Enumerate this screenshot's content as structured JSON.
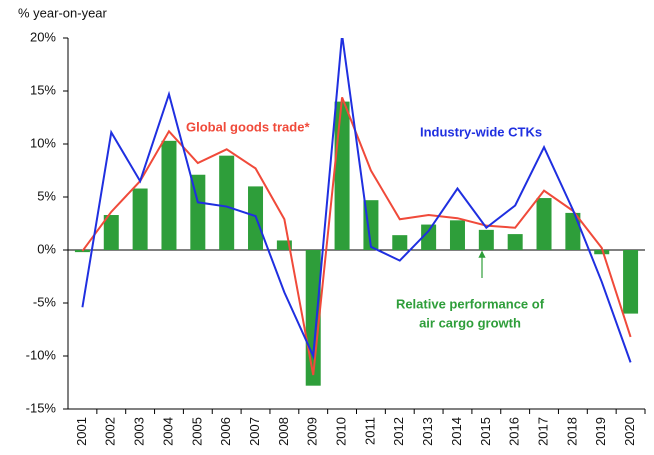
{
  "chart_data": {
    "type": "bar",
    "y_axis_label": "% year-on-year",
    "categories": [
      "2001",
      "2002",
      "2003",
      "2004",
      "2005",
      "2006",
      "2007",
      "2008",
      "2009",
      "2010",
      "2011",
      "2012",
      "2013",
      "2014",
      "2015",
      "2016",
      "2017",
      "2018",
      "2019",
      "2020"
    ],
    "series": [
      {
        "type": "bar",
        "color": "#2e9e3a",
        "values": [
          -0.2,
          3.3,
          5.8,
          10.3,
          7.1,
          8.9,
          6.0,
          0.9,
          -12.8,
          14.0,
          4.7,
          1.4,
          2.4,
          2.8,
          1.9,
          1.5,
          4.9,
          3.5,
          -0.4,
          -6.0
        ]
      },
      {
        "type": "line",
        "color": "#f04a3a",
        "values": [
          -0.1,
          3.6,
          6.5,
          11.2,
          8.2,
          9.5,
          7.7,
          2.9,
          -11.8,
          14.4,
          7.5,
          2.9,
          3.3,
          3.0,
          2.3,
          2.1,
          5.6,
          3.7,
          0.2,
          -8.2
        ]
      },
      {
        "type": "line",
        "color": "#1f2fe0",
        "values": [
          -5.4,
          11.1,
          6.5,
          14.7,
          4.5,
          4.1,
          3.2,
          -4.0,
          -10.0,
          20.3,
          0.3,
          -1.0,
          1.8,
          5.8,
          2.1,
          4.2,
          9.7,
          3.8,
          -3.0,
          -10.6
        ]
      }
    ],
    "annotations": [
      {
        "text": "Global goods trade*",
        "color": "#f04a3a"
      },
      {
        "text": "Industry-wide CTKs",
        "color": "#1f2fe0"
      },
      {
        "lines": [
          "Relative performance of",
          "air cargo growth"
        ],
        "color": "#2e9e3a"
      }
    ],
    "ylim": [
      -15,
      20
    ],
    "yticks": [
      {
        "value": -15,
        "label": "-15%"
      },
      {
        "value": -10,
        "label": "-10%"
      },
      {
        "value": -5,
        "label": "-5%"
      },
      {
        "value": 0,
        "label": "0%"
      },
      {
        "value": 5,
        "label": "5%"
      },
      {
        "value": 10,
        "label": "10%"
      },
      {
        "value": 15,
        "label": "15%"
      },
      {
        "value": 20,
        "label": "20%"
      }
    ]
  }
}
